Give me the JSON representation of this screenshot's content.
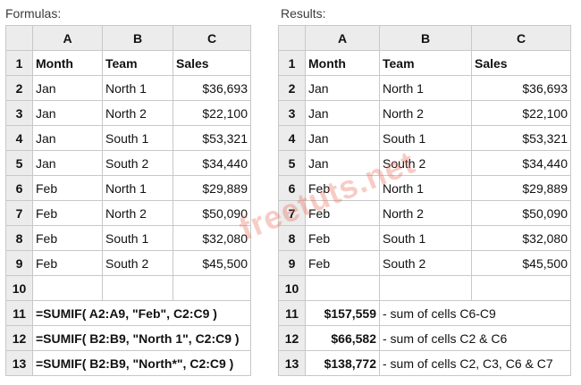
{
  "captions": {
    "left": "Formulas:",
    "right": "Results:"
  },
  "columns": [
    "A",
    "B",
    "C"
  ],
  "headers": {
    "num": "1",
    "month": "Month",
    "team": "Team",
    "sales": "Sales"
  },
  "rows": [
    {
      "num": "2",
      "month": "Jan",
      "team": "North 1",
      "sales": "$36,693"
    },
    {
      "num": "3",
      "month": "Jan",
      "team": "North 2",
      "sales": "$22,100"
    },
    {
      "num": "4",
      "month": "Jan",
      "team": "South 1",
      "sales": "$53,321"
    },
    {
      "num": "5",
      "month": "Jan",
      "team": "South 2",
      "sales": "$34,440"
    },
    {
      "num": "6",
      "month": "Feb",
      "team": "North 1",
      "sales": "$29,889"
    },
    {
      "num": "7",
      "month": "Feb",
      "team": "North 2",
      "sales": "$50,090"
    },
    {
      "num": "8",
      "month": "Feb",
      "team": "South 1",
      "sales": "$32,080"
    },
    {
      "num": "9",
      "month": "Feb",
      "team": "South 2",
      "sales": "$45,500"
    }
  ],
  "empty_row": "10",
  "formula_rows": [
    {
      "num": "11",
      "formula": "=SUMIF( A2:A9, \"Feb\", C2:C9 )",
      "result": "$157,559",
      "note": "- sum of cells C6-C9"
    },
    {
      "num": "12",
      "formula": "=SUMIF( B2:B9, \"North 1\", C2:C9 )",
      "result": "$66,582",
      "note": "- sum of cells C2 & C6"
    },
    {
      "num": "13",
      "formula": "=SUMIF( B2:B9, \"North*\", C2:C9 )",
      "result": "$138,772",
      "note": "- sum of cells C2, C3, C6 & C7"
    }
  ],
  "watermark": "freetuts.net",
  "colors": {
    "note": "#ff2a1a",
    "header_bg": "#ececec",
    "grid": "#c8c8c8"
  }
}
